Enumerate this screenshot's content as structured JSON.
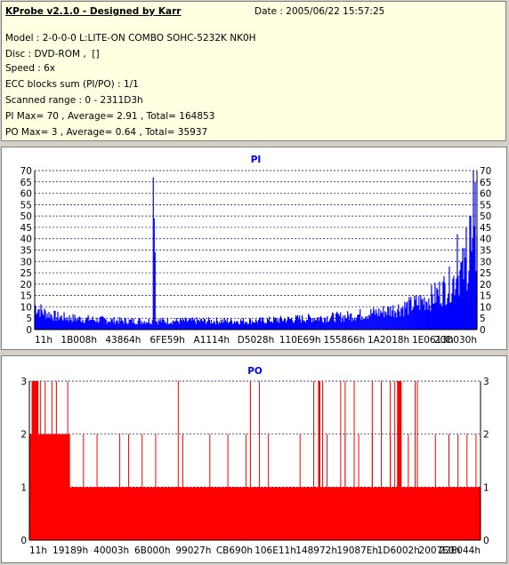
{
  "header": {
    "title": "KProbe v2.1.0 - Designed by Karr",
    "date": "Date : 2005/06/22 15:57:25",
    "lines": [
      "Model : 2-0-0-0 L:LITE-ON COMBO SOHC-5232K NK0H",
      "Disc : DVD-ROM ,  []",
      "Speed : 6x",
      "ECC blocks sum (PI/PO) : 1/1",
      "Scanned range : 0 - 2311D3h",
      "PI Max= 70 , Average= 2.91 , Total= 164853",
      "PO Max= 3 , Average= 0.64 , Total= 35937"
    ]
  },
  "chart_data": [
    {
      "type": "bar",
      "title": "PI",
      "color": "#0000ff",
      "ylim": [
        0,
        70
      ],
      "yticks": [
        0,
        5,
        10,
        15,
        20,
        25,
        30,
        35,
        40,
        45,
        50,
        55,
        60,
        65,
        70
      ],
      "xtick_labels": [
        "11h",
        "1B008h",
        "43864h",
        "6FE59h",
        "A1114h",
        "D5028h",
        "110E69h",
        "155866h",
        "1A2018h",
        "1E0613h",
        "20D030h"
      ],
      "grid": true,
      "series_profile": [
        [
          0,
          11
        ],
        [
          0.02,
          8
        ],
        [
          0.05,
          6
        ],
        [
          0.1,
          5
        ],
        [
          0.2,
          4
        ],
        [
          0.3,
          4
        ],
        [
          0.4,
          4
        ],
        [
          0.5,
          4
        ],
        [
          0.6,
          5
        ],
        [
          0.7,
          6
        ],
        [
          0.78,
          8
        ],
        [
          0.85,
          11
        ],
        [
          0.9,
          15
        ],
        [
          0.94,
          21
        ],
        [
          0.97,
          28
        ],
        [
          1.0,
          38
        ]
      ],
      "spikes": [
        {
          "pos": 0.268,
          "value": 67
        },
        {
          "pos": 0.27,
          "value": 49
        },
        {
          "pos": 0.272,
          "value": 34
        },
        {
          "pos": 0.955,
          "value": 42
        },
        {
          "pos": 0.975,
          "value": 45
        },
        {
          "pos": 0.985,
          "value": 50
        },
        {
          "pos": 0.992,
          "value": 70
        },
        {
          "pos": 0.996,
          "value": 65
        }
      ]
    },
    {
      "type": "bar",
      "title": "PO",
      "color": "#ff0000",
      "ylim": [
        0,
        3
      ],
      "yticks": [
        0,
        1,
        2,
        3
      ],
      "xtick_labels": [
        "11h",
        "19189h",
        "40003h",
        "6B000h",
        "99027h",
        "CB690h",
        "106E11h",
        "148972h",
        "19087Eh",
        "1D6002h",
        "2007E0h",
        "22E044h"
      ],
      "grid": true,
      "base_value": 1,
      "level2_segments": [
        [
          0,
          0.07
        ],
        [
          0.07,
          0.09
        ]
      ],
      "level2_positions": [
        0.12,
        0.15,
        0.2,
        0.22,
        0.25,
        0.28,
        0.34,
        0.4,
        0.44,
        0.48,
        0.53,
        0.6,
        0.66,
        0.7,
        0.73,
        0.76,
        0.8,
        0.84,
        0.86,
        0.9,
        0.93,
        0.95,
        0.97,
        0.99
      ],
      "level3_positions": [
        0.01,
        0.025,
        0.035,
        0.05,
        0.06,
        0.085,
        0.33,
        0.49,
        0.51,
        0.63,
        0.65,
        0.69,
        0.7,
        0.72,
        0.76,
        0.78,
        0.8,
        0.81,
        0.82,
        0.855,
        0.86
      ],
      "level3_blocks": [
        [
          0.005,
          0.02
        ],
        [
          0.64,
          0.645
        ],
        [
          0.815,
          0.825
        ]
      ],
      "zero_gaps": [
        0.86,
        0.869
      ]
    }
  ]
}
